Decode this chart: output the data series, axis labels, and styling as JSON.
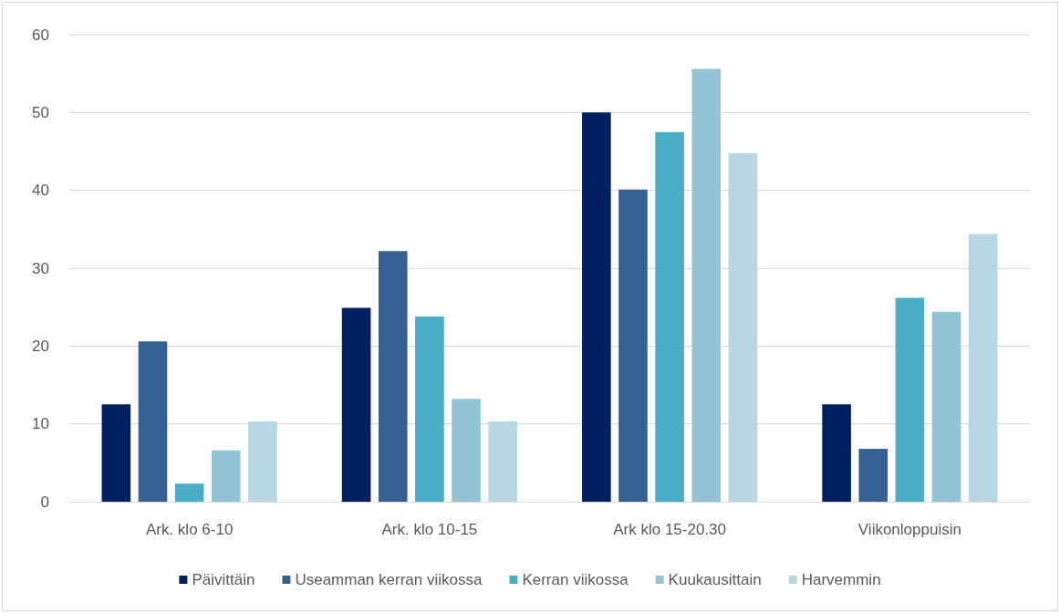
{
  "chart_data": {
    "type": "bar",
    "categories": [
      "Ark. klo 6-10",
      "Ark. klo 10-15",
      "Ark klo 15-20.30",
      "Viikonloppuisin"
    ],
    "series": [
      {
        "name": "Päivittäin",
        "color": "#002060",
        "values": [
          12.5,
          24.9,
          50,
          12.5
        ]
      },
      {
        "name": "Useamman kerran viikossa",
        "color": "#366092",
        "values": [
          20.6,
          32.2,
          40.1,
          6.8
        ]
      },
      {
        "name": "Kerran viikossa",
        "color": "#4bacc6",
        "values": [
          2.3,
          23.8,
          47.5,
          26.2
        ]
      },
      {
        "name": "Kuukausittain",
        "color": "#92c4d6",
        "values": [
          6.6,
          13.2,
          55.6,
          24.4
        ]
      },
      {
        "name": "Harvemmin",
        "color": "#b7d7e3",
        "values": [
          10.3,
          10.3,
          44.8,
          34.4
        ]
      }
    ],
    "ylim": [
      0,
      60
    ],
    "yticks": [
      0,
      10,
      20,
      30,
      40,
      50,
      60
    ],
    "grid": "y",
    "legend": "bottom"
  }
}
